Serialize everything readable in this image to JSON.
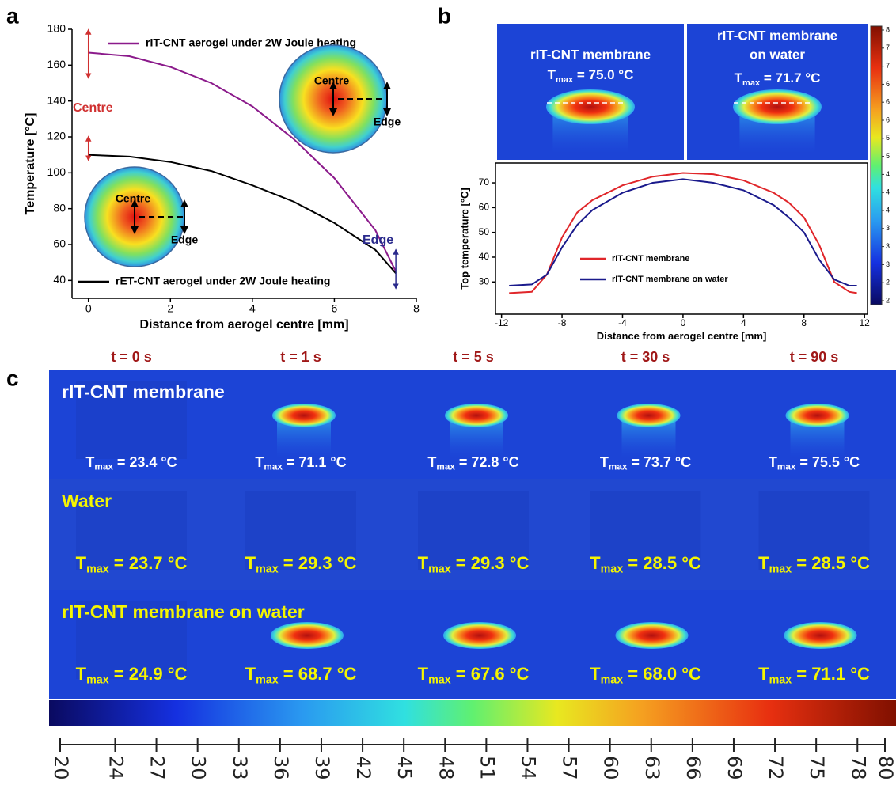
{
  "panels": {
    "a": "a",
    "b": "b",
    "c": "c"
  },
  "tmax_symbol": "T",
  "tmax_subscript": "max",
  "chart_data": [
    {
      "type": "line",
      "x_label": "Distance from aerogel centre [mm]",
      "y_label": "Temperature [°C]",
      "x": [
        0,
        1,
        2,
        3,
        4,
        5,
        6,
        7,
        7.5
      ],
      "series": [
        {
          "name": "rIT-CNT aerogel under 2W Joule heating",
          "color": "#8b1a8b",
          "values": [
            167,
            165,
            159,
            150,
            137,
            119,
            97,
            68,
            45
          ]
        },
        {
          "name": "rET-CNT aerogel under 2W Joule heating",
          "color": "#000000",
          "values": [
            110,
            109,
            106,
            101,
            93,
            84,
            72,
            57,
            44
          ]
        }
      ],
      "xlim": [
        -0.4,
        8
      ],
      "xticks": [
        0,
        2,
        4,
        6,
        8
      ],
      "ylim": [
        30,
        180
      ],
      "yticks": [
        40,
        60,
        80,
        100,
        120,
        140,
        160,
        180
      ],
      "annotations": {
        "centre": "Centre",
        "edge": "Edge"
      }
    },
    {
      "type": "line",
      "x_label": "Distance from aerogel centre [mm]",
      "y_label": "Top temperature [°C]",
      "x": [
        -11.5,
        -10,
        -9,
        -8,
        -7,
        -6,
        -4,
        -2,
        0,
        2,
        4,
        6,
        7,
        8,
        9,
        10,
        11,
        11.5
      ],
      "series": [
        {
          "name": "rIT-CNT membrane",
          "color": "#e0262a",
          "values": [
            25.5,
            26,
            33,
            48,
            58,
            63,
            69,
            72.5,
            74,
            73.5,
            71,
            66,
            62,
            56,
            45,
            30,
            26,
            25.5
          ]
        },
        {
          "name": "rIT-CNT membrane on water",
          "color": "#1a1a8c",
          "values": [
            28.5,
            29,
            33,
            44,
            53,
            59,
            66,
            70,
            71.5,
            70,
            67,
            61,
            56,
            50,
            39,
            31,
            28.5,
            28.5
          ]
        }
      ],
      "xlim": [
        -12.4,
        12.2
      ],
      "xticks": [
        -12,
        -8,
        -4,
        0,
        4,
        8,
        12
      ],
      "ylim": [
        17,
        78
      ],
      "yticks": [
        30,
        40,
        50,
        60,
        70
      ],
      "thermal_images": [
        {
          "title": [
            "rIT-CNT membrane"
          ],
          "tmax": " = 75.0 °C"
        },
        {
          "title": [
            "rIT-CNT membrane",
            "on water"
          ],
          "tmax": " = 71.7 °C"
        }
      ],
      "side_colorbar_labels": [
        "8",
        "7",
        "7",
        "6",
        "6",
        "6",
        "5",
        "5",
        "4",
        "4",
        "4",
        "3",
        "3",
        "3",
        "2",
        "2"
      ]
    }
  ],
  "panel_c": {
    "times": [
      "t = 0 s",
      "t = 1 s",
      "t = 5 s",
      "t = 30 s",
      "t = 90 s"
    ],
    "rows": [
      {
        "label": "rIT-CNT membrane",
        "tmax": [
          " = 23.4 °C",
          " = 71.1 °C",
          " = 72.8 °C",
          " = 73.7 °C",
          " = 75.5 °C"
        ]
      },
      {
        "label": "Water",
        "tmax": [
          " = 23.7 °C",
          " = 29.3 °C",
          " = 29.3 °C",
          " = 28.5 °C",
          " = 28.5 °C"
        ]
      },
      {
        "label": "rIT-CNT membrane on water",
        "tmax": [
          " = 24.9 °C",
          " = 68.7 °C",
          " = 67.6 °C",
          " = 68.0 °C",
          " = 71.1 °C"
        ]
      }
    ],
    "colorbar": {
      "lim": [
        20,
        80
      ],
      "ticks": [
        20,
        24,
        27,
        30,
        33,
        36,
        39,
        42,
        45,
        48,
        51,
        54,
        57,
        60,
        63,
        66,
        69,
        72,
        75,
        78,
        80
      ]
    }
  }
}
